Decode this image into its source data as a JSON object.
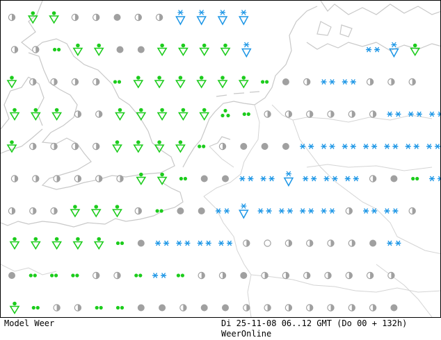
{
  "footer": {
    "model_label": "Model Weer",
    "valid_time": "Di 25-11-08 06..12 GMT (Do 00 + 132h)",
    "source": "WeerOnline"
  },
  "colors": {
    "snow": "#1c96e6",
    "rain": "#1ccc1c",
    "cloud": "#a0a0a0",
    "coastline": "#c8c8c8",
    "frame": "#000000"
  },
  "symbol_legend": {
    "half_moon": "partly cloudy",
    "full_disc": "overcast",
    "double_dot": "light rain",
    "shower": "rain shower",
    "double_star": "snow",
    "snow_shower": "snow shower"
  },
  "symbols": [
    {
      "t": "half",
      "r": 0,
      "c": 0
    },
    {
      "t": "shower",
      "r": 0,
      "c": 1
    },
    {
      "t": "shower",
      "r": 0,
      "c": 2
    },
    {
      "t": "half",
      "r": 0,
      "c": 3
    },
    {
      "t": "half",
      "r": 0,
      "c": 4
    },
    {
      "t": "full",
      "r": 0,
      "c": 5
    },
    {
      "t": "half",
      "r": 0,
      "c": 6
    },
    {
      "t": "half",
      "r": 0,
      "c": 7
    },
    {
      "t": "snowshower",
      "r": 0,
      "c": 8
    },
    {
      "t": "snowshower",
      "r": 0,
      "c": 9
    },
    {
      "t": "snowshower",
      "r": 0,
      "c": 10
    },
    {
      "t": "snowshower",
      "r": 0,
      "c": 11
    },
    {
      "t": "half",
      "r": 1,
      "c": 0
    },
    {
      "t": "half",
      "r": 1,
      "c": 1
    },
    {
      "t": "dots",
      "r": 1,
      "c": 2
    },
    {
      "t": "shower",
      "r": 1,
      "c": 3
    },
    {
      "t": "shower",
      "r": 1,
      "c": 4
    },
    {
      "t": "full",
      "r": 1,
      "c": 5
    },
    {
      "t": "full",
      "r": 1,
      "c": 6
    },
    {
      "t": "shower",
      "r": 1,
      "c": 7
    },
    {
      "t": "shower",
      "r": 1,
      "c": 8
    },
    {
      "t": "shower",
      "r": 1,
      "c": 9
    },
    {
      "t": "shower",
      "r": 1,
      "c": 10
    },
    {
      "t": "snowshower",
      "r": 1,
      "c": 11
    },
    {
      "t": "snow",
      "r": 1,
      "c": 17
    },
    {
      "t": "snowshower",
      "r": 1,
      "c": 18
    },
    {
      "t": "shower",
      "r": 1,
      "c": 19
    },
    {
      "t": "shower",
      "r": 2,
      "c": 0
    },
    {
      "t": "half",
      "r": 2,
      "c": 1
    },
    {
      "t": "half",
      "r": 2,
      "c": 2
    },
    {
      "t": "half",
      "r": 2,
      "c": 3
    },
    {
      "t": "half",
      "r": 2,
      "c": 4
    },
    {
      "t": "dots",
      "r": 2,
      "c": 5
    },
    {
      "t": "shower",
      "r": 2,
      "c": 6
    },
    {
      "t": "shower",
      "r": 2,
      "c": 7
    },
    {
      "t": "shower",
      "r": 2,
      "c": 8
    },
    {
      "t": "shower",
      "r": 2,
      "c": 9
    },
    {
      "t": "shower",
      "r": 2,
      "c": 10
    },
    {
      "t": "shower",
      "r": 2,
      "c": 11
    },
    {
      "t": "dots",
      "r": 2,
      "c": 12
    },
    {
      "t": "full",
      "r": 2,
      "c": 13
    },
    {
      "t": "half",
      "r": 2,
      "c": 14
    },
    {
      "t": "snow",
      "r": 2,
      "c": 15
    },
    {
      "t": "snow",
      "r": 2,
      "c": 16
    },
    {
      "t": "half",
      "r": 2,
      "c": 17
    },
    {
      "t": "half",
      "r": 2,
      "c": 18
    },
    {
      "t": "half",
      "r": 2,
      "c": 19
    },
    {
      "t": "shower",
      "r": 3,
      "c": 0
    },
    {
      "t": "shower",
      "r": 3,
      "c": 1
    },
    {
      "t": "shower",
      "r": 3,
      "c": 2
    },
    {
      "t": "half",
      "r": 3,
      "c": 3
    },
    {
      "t": "half",
      "r": 3,
      "c": 4
    },
    {
      "t": "shower",
      "r": 3,
      "c": 5
    },
    {
      "t": "shower",
      "r": 3,
      "c": 6
    },
    {
      "t": "shower",
      "r": 3,
      "c": 7
    },
    {
      "t": "shower",
      "r": 3,
      "c": 8
    },
    {
      "t": "shower",
      "r": 3,
      "c": 9
    },
    {
      "t": "showerdots",
      "r": 3,
      "c": 10
    },
    {
      "t": "dots",
      "r": 3,
      "c": 11
    },
    {
      "t": "half",
      "r": 3,
      "c": 12
    },
    {
      "t": "half",
      "r": 3,
      "c": 13
    },
    {
      "t": "half",
      "r": 3,
      "c": 14
    },
    {
      "t": "half",
      "r": 3,
      "c": 15
    },
    {
      "t": "half",
      "r": 3,
      "c": 16
    },
    {
      "t": "half",
      "r": 3,
      "c": 17
    },
    {
      "t": "snow",
      "r": 3,
      "c": 18
    },
    {
      "t": "snow",
      "r": 3,
      "c": 19
    },
    {
      "t": "snow",
      "r": 3,
      "c": 20
    },
    {
      "t": "shower",
      "r": 4,
      "c": 0
    },
    {
      "t": "half",
      "r": 4,
      "c": 1
    },
    {
      "t": "half",
      "r": 4,
      "c": 2
    },
    {
      "t": "half",
      "r": 4,
      "c": 3
    },
    {
      "t": "half",
      "r": 4,
      "c": 4
    },
    {
      "t": "shower",
      "r": 4,
      "c": 5
    },
    {
      "t": "shower",
      "r": 4,
      "c": 6
    },
    {
      "t": "shower",
      "r": 4,
      "c": 7
    },
    {
      "t": "shower",
      "r": 4,
      "c": 8
    },
    {
      "t": "dots",
      "r": 4,
      "c": 9
    },
    {
      "t": "half",
      "r": 4,
      "c": 10
    },
    {
      "t": "full",
      "r": 4,
      "c": 11
    },
    {
      "t": "full",
      "r": 4,
      "c": 12
    },
    {
      "t": "full",
      "r": 4,
      "c": 13
    },
    {
      "t": "snow",
      "r": 4,
      "c": 14
    },
    {
      "t": "snow",
      "r": 4,
      "c": 15
    },
    {
      "t": "snow",
      "r": 4,
      "c": 16
    },
    {
      "t": "snow",
      "r": 4,
      "c": 17
    },
    {
      "t": "snow",
      "r": 4,
      "c": 18
    },
    {
      "t": "snow",
      "r": 4,
      "c": 19
    },
    {
      "t": "snow",
      "r": 4,
      "c": 20
    },
    {
      "t": "half",
      "r": 5,
      "c": 0
    },
    {
      "t": "half",
      "r": 5,
      "c": 1
    },
    {
      "t": "half",
      "r": 5,
      "c": 2
    },
    {
      "t": "half",
      "r": 5,
      "c": 3
    },
    {
      "t": "half",
      "r": 5,
      "c": 4
    },
    {
      "t": "half",
      "r": 5,
      "c": 5
    },
    {
      "t": "shower",
      "r": 5,
      "c": 6
    },
    {
      "t": "shower",
      "r": 5,
      "c": 7
    },
    {
      "t": "dots",
      "r": 5,
      "c": 8
    },
    {
      "t": "full",
      "r": 5,
      "c": 9
    },
    {
      "t": "full",
      "r": 5,
      "c": 10
    },
    {
      "t": "snow",
      "r": 5,
      "c": 11
    },
    {
      "t": "snow",
      "r": 5,
      "c": 12
    },
    {
      "t": "snowshower",
      "r": 5,
      "c": 13
    },
    {
      "t": "snow",
      "r": 5,
      "c": 14
    },
    {
      "t": "snow",
      "r": 5,
      "c": 15
    },
    {
      "t": "snow",
      "r": 5,
      "c": 16
    },
    {
      "t": "half",
      "r": 5,
      "c": 17
    },
    {
      "t": "full",
      "r": 5,
      "c": 18
    },
    {
      "t": "dots",
      "r": 5,
      "c": 19
    },
    {
      "t": "snow",
      "r": 5,
      "c": 20
    },
    {
      "t": "half",
      "r": 6,
      "c": 0
    },
    {
      "t": "half",
      "r": 6,
      "c": 1
    },
    {
      "t": "half",
      "r": 6,
      "c": 2
    },
    {
      "t": "shower",
      "r": 6,
      "c": 3
    },
    {
      "t": "shower",
      "r": 6,
      "c": 4
    },
    {
      "t": "shower",
      "r": 6,
      "c": 5
    },
    {
      "t": "half",
      "r": 6,
      "c": 6
    },
    {
      "t": "dots",
      "r": 6,
      "c": 7
    },
    {
      "t": "full",
      "r": 6,
      "c": 8
    },
    {
      "t": "full",
      "r": 6,
      "c": 9
    },
    {
      "t": "snow",
      "r": 6,
      "c": 10
    },
    {
      "t": "snowshower",
      "r": 6,
      "c": 11
    },
    {
      "t": "snow",
      "r": 6,
      "c": 12
    },
    {
      "t": "snow",
      "r": 6,
      "c": 13
    },
    {
      "t": "snow",
      "r": 6,
      "c": 14
    },
    {
      "t": "snow",
      "r": 6,
      "c": 15
    },
    {
      "t": "half",
      "r": 6,
      "c": 16
    },
    {
      "t": "snow",
      "r": 6,
      "c": 17
    },
    {
      "t": "snow",
      "r": 6,
      "c": 18
    },
    {
      "t": "half",
      "r": 6,
      "c": 19
    },
    {
      "t": "shower",
      "r": 7,
      "c": 0
    },
    {
      "t": "shower",
      "r": 7,
      "c": 1
    },
    {
      "t": "shower",
      "r": 7,
      "c": 2
    },
    {
      "t": "shower",
      "r": 7,
      "c": 3
    },
    {
      "t": "shower",
      "r": 7,
      "c": 4
    },
    {
      "t": "dots",
      "r": 7,
      "c": 5
    },
    {
      "t": "full",
      "r": 7,
      "c": 6
    },
    {
      "t": "snow",
      "r": 7,
      "c": 7
    },
    {
      "t": "snow",
      "r": 7,
      "c": 8
    },
    {
      "t": "snow",
      "r": 7,
      "c": 9
    },
    {
      "t": "snow",
      "r": 7,
      "c": 10
    },
    {
      "t": "half",
      "r": 7,
      "c": 11
    },
    {
      "t": "empty",
      "r": 7,
      "c": 12
    },
    {
      "t": "half",
      "r": 7,
      "c": 13
    },
    {
      "t": "half",
      "r": 7,
      "c": 14
    },
    {
      "t": "half",
      "r": 7,
      "c": 15
    },
    {
      "t": "half",
      "r": 7,
      "c": 16
    },
    {
      "t": "full",
      "r": 7,
      "c": 17
    },
    {
      "t": "snow",
      "r": 7,
      "c": 18
    },
    {
      "t": "full",
      "r": 8,
      "c": 0
    },
    {
      "t": "dots",
      "r": 8,
      "c": 1
    },
    {
      "t": "dots",
      "r": 8,
      "c": 2
    },
    {
      "t": "dots",
      "r": 8,
      "c": 3
    },
    {
      "t": "half",
      "r": 8,
      "c": 4
    },
    {
      "t": "half",
      "r": 8,
      "c": 5
    },
    {
      "t": "dots",
      "r": 8,
      "c": 6
    },
    {
      "t": "snow",
      "r": 8,
      "c": 7
    },
    {
      "t": "dots",
      "r": 8,
      "c": 8
    },
    {
      "t": "half",
      "r": 8,
      "c": 9
    },
    {
      "t": "half",
      "r": 8,
      "c": 10
    },
    {
      "t": "full",
      "r": 8,
      "c": 11
    },
    {
      "t": "half",
      "r": 8,
      "c": 12
    },
    {
      "t": "half",
      "r": 8,
      "c": 13
    },
    {
      "t": "half",
      "r": 8,
      "c": 14
    },
    {
      "t": "half",
      "r": 8,
      "c": 15
    },
    {
      "t": "half",
      "r": 8,
      "c": 16
    },
    {
      "t": "half",
      "r": 8,
      "c": 17
    },
    {
      "t": "half",
      "r": 8,
      "c": 18
    },
    {
      "t": "shower",
      "r": 9,
      "c": 0
    },
    {
      "t": "dots",
      "r": 9,
      "c": 1
    },
    {
      "t": "half",
      "r": 9,
      "c": 2
    },
    {
      "t": "half",
      "r": 9,
      "c": 3
    },
    {
      "t": "dots",
      "r": 9,
      "c": 4
    },
    {
      "t": "dots",
      "r": 9,
      "c": 5
    },
    {
      "t": "full",
      "r": 9,
      "c": 6
    },
    {
      "t": "full",
      "r": 9,
      "c": 7
    },
    {
      "t": "half",
      "r": 9,
      "c": 8
    },
    {
      "t": "full",
      "r": 9,
      "c": 9
    },
    {
      "t": "full",
      "r": 9,
      "c": 10
    },
    {
      "t": "half",
      "r": 9,
      "c": 11
    },
    {
      "t": "half",
      "r": 9,
      "c": 12
    },
    {
      "t": "half",
      "r": 9,
      "c": 13
    },
    {
      "t": "half",
      "r": 9,
      "c": 14
    },
    {
      "t": "half",
      "r": 9,
      "c": 15
    },
    {
      "t": "half",
      "r": 9,
      "c": 16
    },
    {
      "t": "half",
      "r": 9,
      "c": 17
    },
    {
      "t": "full",
      "r": 9,
      "c": 18
    }
  ]
}
